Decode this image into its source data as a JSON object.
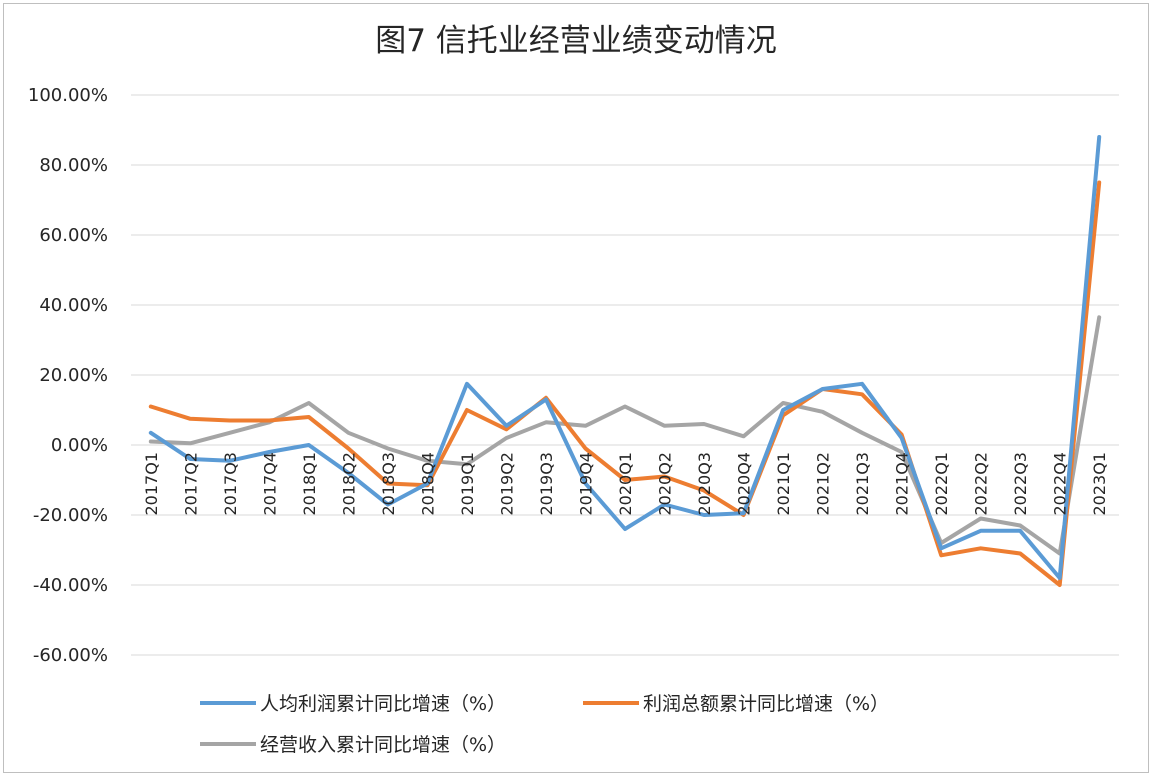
{
  "chart_data": {
    "type": "line",
    "title": "图7  信托业经营业绩变动情况",
    "categories": [
      "2017Q1",
      "2017Q2",
      "2017Q3",
      "2017Q4",
      "2018Q1",
      "2018Q2",
      "2018Q3",
      "2018Q4",
      "2019Q1",
      "2019Q2",
      "2019Q3",
      "2019Q4",
      "2020Q1",
      "2020Q2",
      "2020Q3",
      "2020Q4",
      "2021Q1",
      "2021Q2",
      "2021Q3",
      "2021Q4",
      "2022Q1",
      "2022Q2",
      "2022Q3",
      "2022Q4",
      "2023Q1"
    ],
    "ylim": [
      -60,
      100
    ],
    "yticks": [
      "100.00%",
      "80.00%",
      "60.00%",
      "40.00%",
      "20.00%",
      "0.00%",
      "-20.00%",
      "-40.00%",
      "-60.00%"
    ],
    "grid": true,
    "legend_position": "bottom",
    "series": [
      {
        "name": "人均利润累计同比增速（%）",
        "color": "#5b9bd5",
        "values": [
          3.5,
          -4,
          -4.5,
          -2,
          0,
          -8,
          -17,
          -11,
          17.5,
          5.5,
          13,
          -11,
          -24,
          -17,
          -20,
          -19.5,
          10,
          16,
          17.5,
          2,
          -29.5,
          -24.5,
          -24.5,
          -38,
          88
        ]
      },
      {
        "name": "利润总额累计同比增速（%）",
        "color": "#ed7d31",
        "values": [
          11,
          7.5,
          7,
          7,
          8,
          -1,
          -11,
          -11.5,
          10,
          4.5,
          13.5,
          -1,
          -10,
          -9,
          -13,
          -20,
          8.5,
          16,
          14.5,
          3,
          -31.5,
          -29.5,
          -31,
          -40,
          75
        ]
      },
      {
        "name": "经营收入累计同比增速（%）",
        "color": "#a5a5a5",
        "values": [
          1,
          0.5,
          3.5,
          6.5,
          12,
          3.5,
          -1,
          -4.5,
          -5.5,
          2,
          6.5,
          5.5,
          11,
          5.5,
          6,
          2.5,
          12,
          9.5,
          3.5,
          -2,
          -28,
          -21,
          -23,
          -31,
          36.5
        ]
      }
    ]
  }
}
